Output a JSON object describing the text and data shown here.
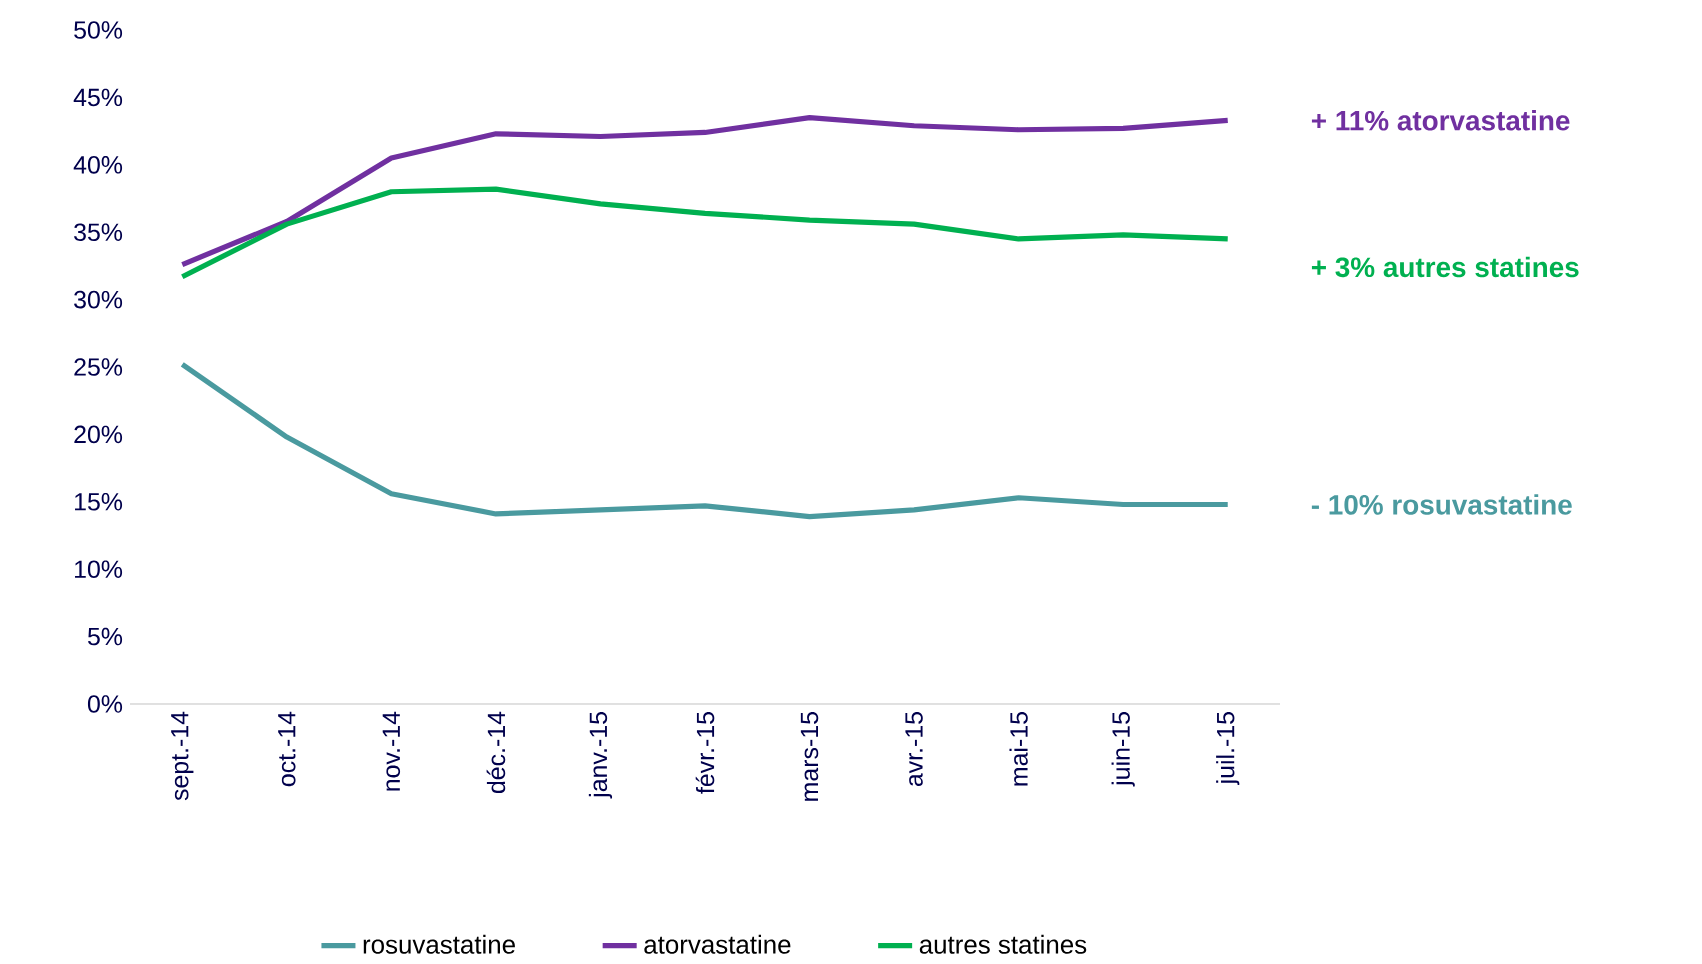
{
  "chart_data": {
    "type": "line",
    "categories": [
      "sept.-14",
      "oct.-14",
      "nov.-14",
      "déc.-14",
      "janv.-15",
      "févr.-15",
      "mars-15",
      "avr.-15",
      "mai-15",
      "juin-15",
      "juil.-15"
    ],
    "series": [
      {
        "name": "rosuvastatine",
        "color": "#4a9a9f",
        "values": [
          25.2,
          19.8,
          15.6,
          14.1,
          14.4,
          14.7,
          13.9,
          14.4,
          15.3,
          14.8,
          14.8
        ]
      },
      {
        "name": "atorvastatine",
        "color": "#7030a0",
        "values": [
          32.6,
          35.8,
          40.5,
          42.3,
          42.1,
          42.4,
          43.5,
          42.9,
          42.6,
          42.7,
          43.3
        ]
      },
      {
        "name": "autres statines",
        "color": "#00b050",
        "values": [
          31.7,
          35.6,
          38.0,
          38.2,
          37.1,
          36.4,
          35.9,
          35.6,
          34.5,
          34.8,
          34.5
        ]
      }
    ],
    "ylim": [
      0,
      50
    ],
    "yticks": [
      {
        "value": 0,
        "label": "0%"
      },
      {
        "value": 5,
        "label": "5%"
      },
      {
        "value": 10,
        "label": "10%"
      },
      {
        "value": 15,
        "label": "15%"
      },
      {
        "value": 20,
        "label": "20%"
      },
      {
        "value": 25,
        "label": "25%"
      },
      {
        "value": 30,
        "label": "30%"
      },
      {
        "value": 35,
        "label": "35%"
      },
      {
        "value": 40,
        "label": "40%"
      },
      {
        "value": 45,
        "label": "45%"
      },
      {
        "value": 50,
        "label": "50%"
      }
    ],
    "annotations": [
      "- 10% rosuvastatine",
      "+ 11% atorvastatine",
      "+ 3% autres statines"
    ],
    "grid": false,
    "legend": "bottom"
  }
}
